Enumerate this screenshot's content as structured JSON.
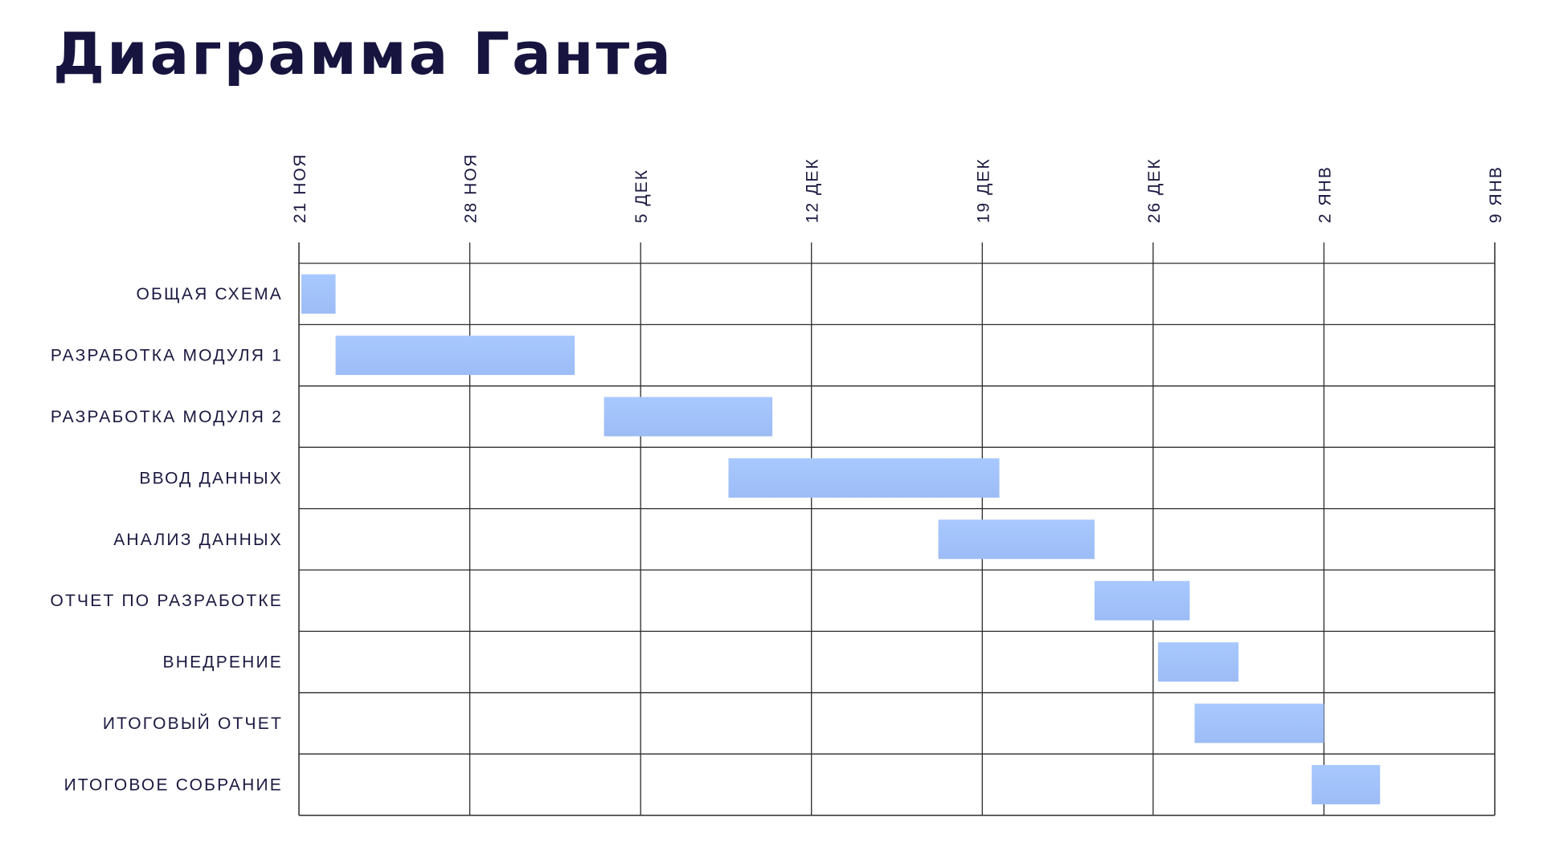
{
  "page": {
    "title": "Диаграмма Ганта"
  },
  "chart_data": {
    "type": "gantt",
    "title": "Диаграмма Ганта",
    "x_ticks": [
      "21 НОЯ",
      "28 НОЯ",
      "5 ДЕК",
      "12 ДЕК",
      "19 ДЕК",
      "26 ДЕК",
      "2 ЯНВ",
      "9 ЯНВ"
    ],
    "x_range_days": [
      0,
      49
    ],
    "x_origin_label": "21 НОЯ",
    "tasks": [
      {
        "name": "ОБЩАЯ СХЕМА",
        "start_day": 0.1,
        "end_day": 1.5
      },
      {
        "name": "РАЗРАБОТКА МОДУЛЯ 1",
        "start_day": 1.5,
        "end_day": 11.3
      },
      {
        "name": "РАЗРАБОТКА МОДУЛЯ 2",
        "start_day": 12.5,
        "end_day": 19.4
      },
      {
        "name": "ВВОД ДАННЫХ",
        "start_day": 17.6,
        "end_day": 28.7
      },
      {
        "name": "АНАЛИЗ ДАННЫХ",
        "start_day": 26.2,
        "end_day": 32.6
      },
      {
        "name": "ОТЧЕТ ПО РАЗРАБОТКЕ",
        "start_day": 32.6,
        "end_day": 36.5
      },
      {
        "name": "ВНЕДРЕНИЕ",
        "start_day": 35.2,
        "end_day": 38.5
      },
      {
        "name": "ИТОГОВЫЙ ОТЧЕТ",
        "start_day": 36.7,
        "end_day": 42.0
      },
      {
        "name": "ИТОГОВОЕ СОБРАНИЕ",
        "start_day": 41.5,
        "end_day": 44.3
      }
    ],
    "bar_colors": [
      "#a8c8ff",
      "#9dbcf6"
    ],
    "grid": true
  }
}
